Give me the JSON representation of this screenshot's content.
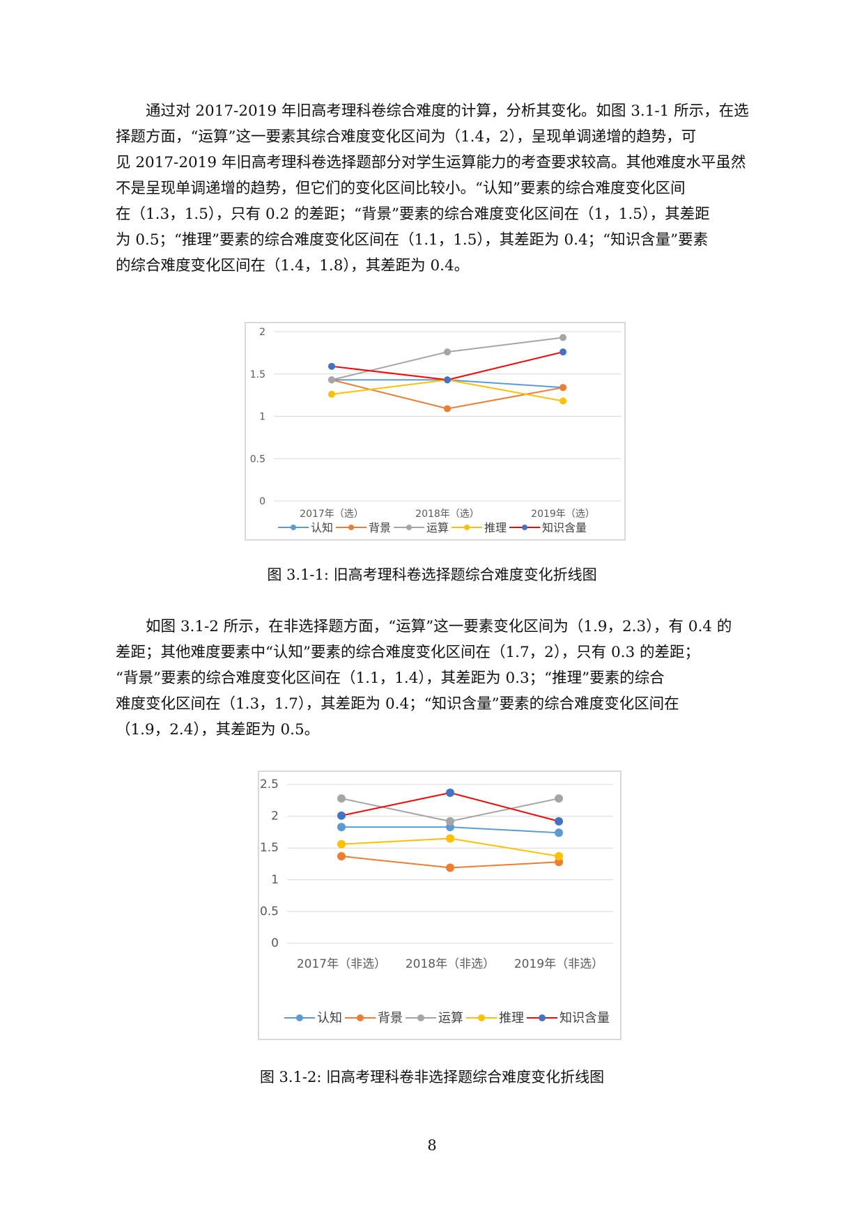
{
  "paragraph1": {
    "lines": [
      "通过对 2017-2019 年旧高考理科卷综合难度的计算，分析其变化。如图 3.1-1 所示，在选",
      "择题方面，“运算”这一要素其综合难度变化区间为（1.4，2），呈现单调递增的趋势，可",
      "见 2017-2019 年旧高考理科卷选择题部分对学生运算能力的考查要求较高。其他难度水平虽然",
      "不是呈现单调递增的趋势，但它们的变化区间比较小。“认知”要素的综合难度变化区间",
      "在（1.3，1.5），只有 0.2 的差距；“背景”要素的综合难度变化区间在（1，1.5），其差距",
      "为 0.5；“推理”要素的综合难度变化区间在（1.1，1.5），其差距为 0.4；“知识含量”要素",
      "的综合难度变化区间在（1.4，1.8），其差距为 0.4。"
    ]
  },
  "figure1": {
    "caption": "图 3.1-1:  旧高考理科卷选择题综合难度变化折线图",
    "chart_data": {
      "type": "line",
      "categories": [
        "2017年（选）",
        "2018年（选）",
        "2019年（选）"
      ],
      "ylim": [
        0,
        2
      ],
      "yticks": [
        "0",
        "0.5",
        "1",
        "1.5",
        "2"
      ],
      "grid": true,
      "legend_position": "bottom",
      "series": [
        {
          "name": "认知",
          "color": "#5b9bd5",
          "values": [
            1.43,
            1.43,
            1.34
          ]
        },
        {
          "name": "背景",
          "color": "#ed7d31",
          "values": [
            1.43,
            1.09,
            1.34
          ]
        },
        {
          "name": "运算",
          "color": "#a5a5a5",
          "values": [
            1.43,
            1.76,
            1.93
          ]
        },
        {
          "name": "推理",
          "color": "#ffc000",
          "values": [
            1.26,
            1.43,
            1.18
          ]
        },
        {
          "name": "知识含量",
          "color": "#4472c4",
          "values": [
            1.59,
            1.43,
            1.76
          ]
        }
      ],
      "connector_color": "#ff0000"
    }
  },
  "paragraph2": {
    "lines": [
      "如图 3.1-2 所示，在非选择题方面，“运算”这一要素变化区间为（1.9，2.3），有 0.4 的",
      "差距；其他难度要素中“认知”要素的综合难度变化区间在（1.7，2），只有 0.3 的差距；",
      "“背景”要素的综合难度变化区间在（1.1，1.4），其差距为 0.3；“推理”要素的综合",
      "难度变化区间在（1.3，1.7），其差距为 0.4；“知识含量”要素的综合难度变化区间在",
      "（1.9，2.4），其差距为 0.5。"
    ]
  },
  "figure2": {
    "caption": "图 3.1-2:  旧高考理科卷非选择题综合难度变化折线图",
    "chart_data": {
      "type": "line",
      "categories": [
        "2017年（非选）",
        "2018年（非选）",
        "2019年（非选）"
      ],
      "ylim": [
        0,
        2.5
      ],
      "yticks": [
        "0",
        "0.5",
        "1",
        "1.5",
        "2",
        "2.5"
      ],
      "grid": true,
      "legend_position": "bottom",
      "series": [
        {
          "name": "认知",
          "color": "#5b9bd5",
          "values": [
            1.83,
            1.83,
            1.74
          ]
        },
        {
          "name": "背景",
          "color": "#ed7d31",
          "values": [
            1.37,
            1.19,
            1.28
          ]
        },
        {
          "name": "运算",
          "color": "#a5a5a5",
          "values": [
            2.28,
            1.92,
            2.28
          ]
        },
        {
          "name": "推理",
          "color": "#ffc000",
          "values": [
            1.56,
            1.65,
            1.37
          ]
        },
        {
          "name": "知识含量",
          "color": "#4472c4",
          "values": [
            2.01,
            2.37,
            1.92
          ]
        }
      ],
      "connector_color": "#ff0000"
    }
  },
  "page_number": "8"
}
